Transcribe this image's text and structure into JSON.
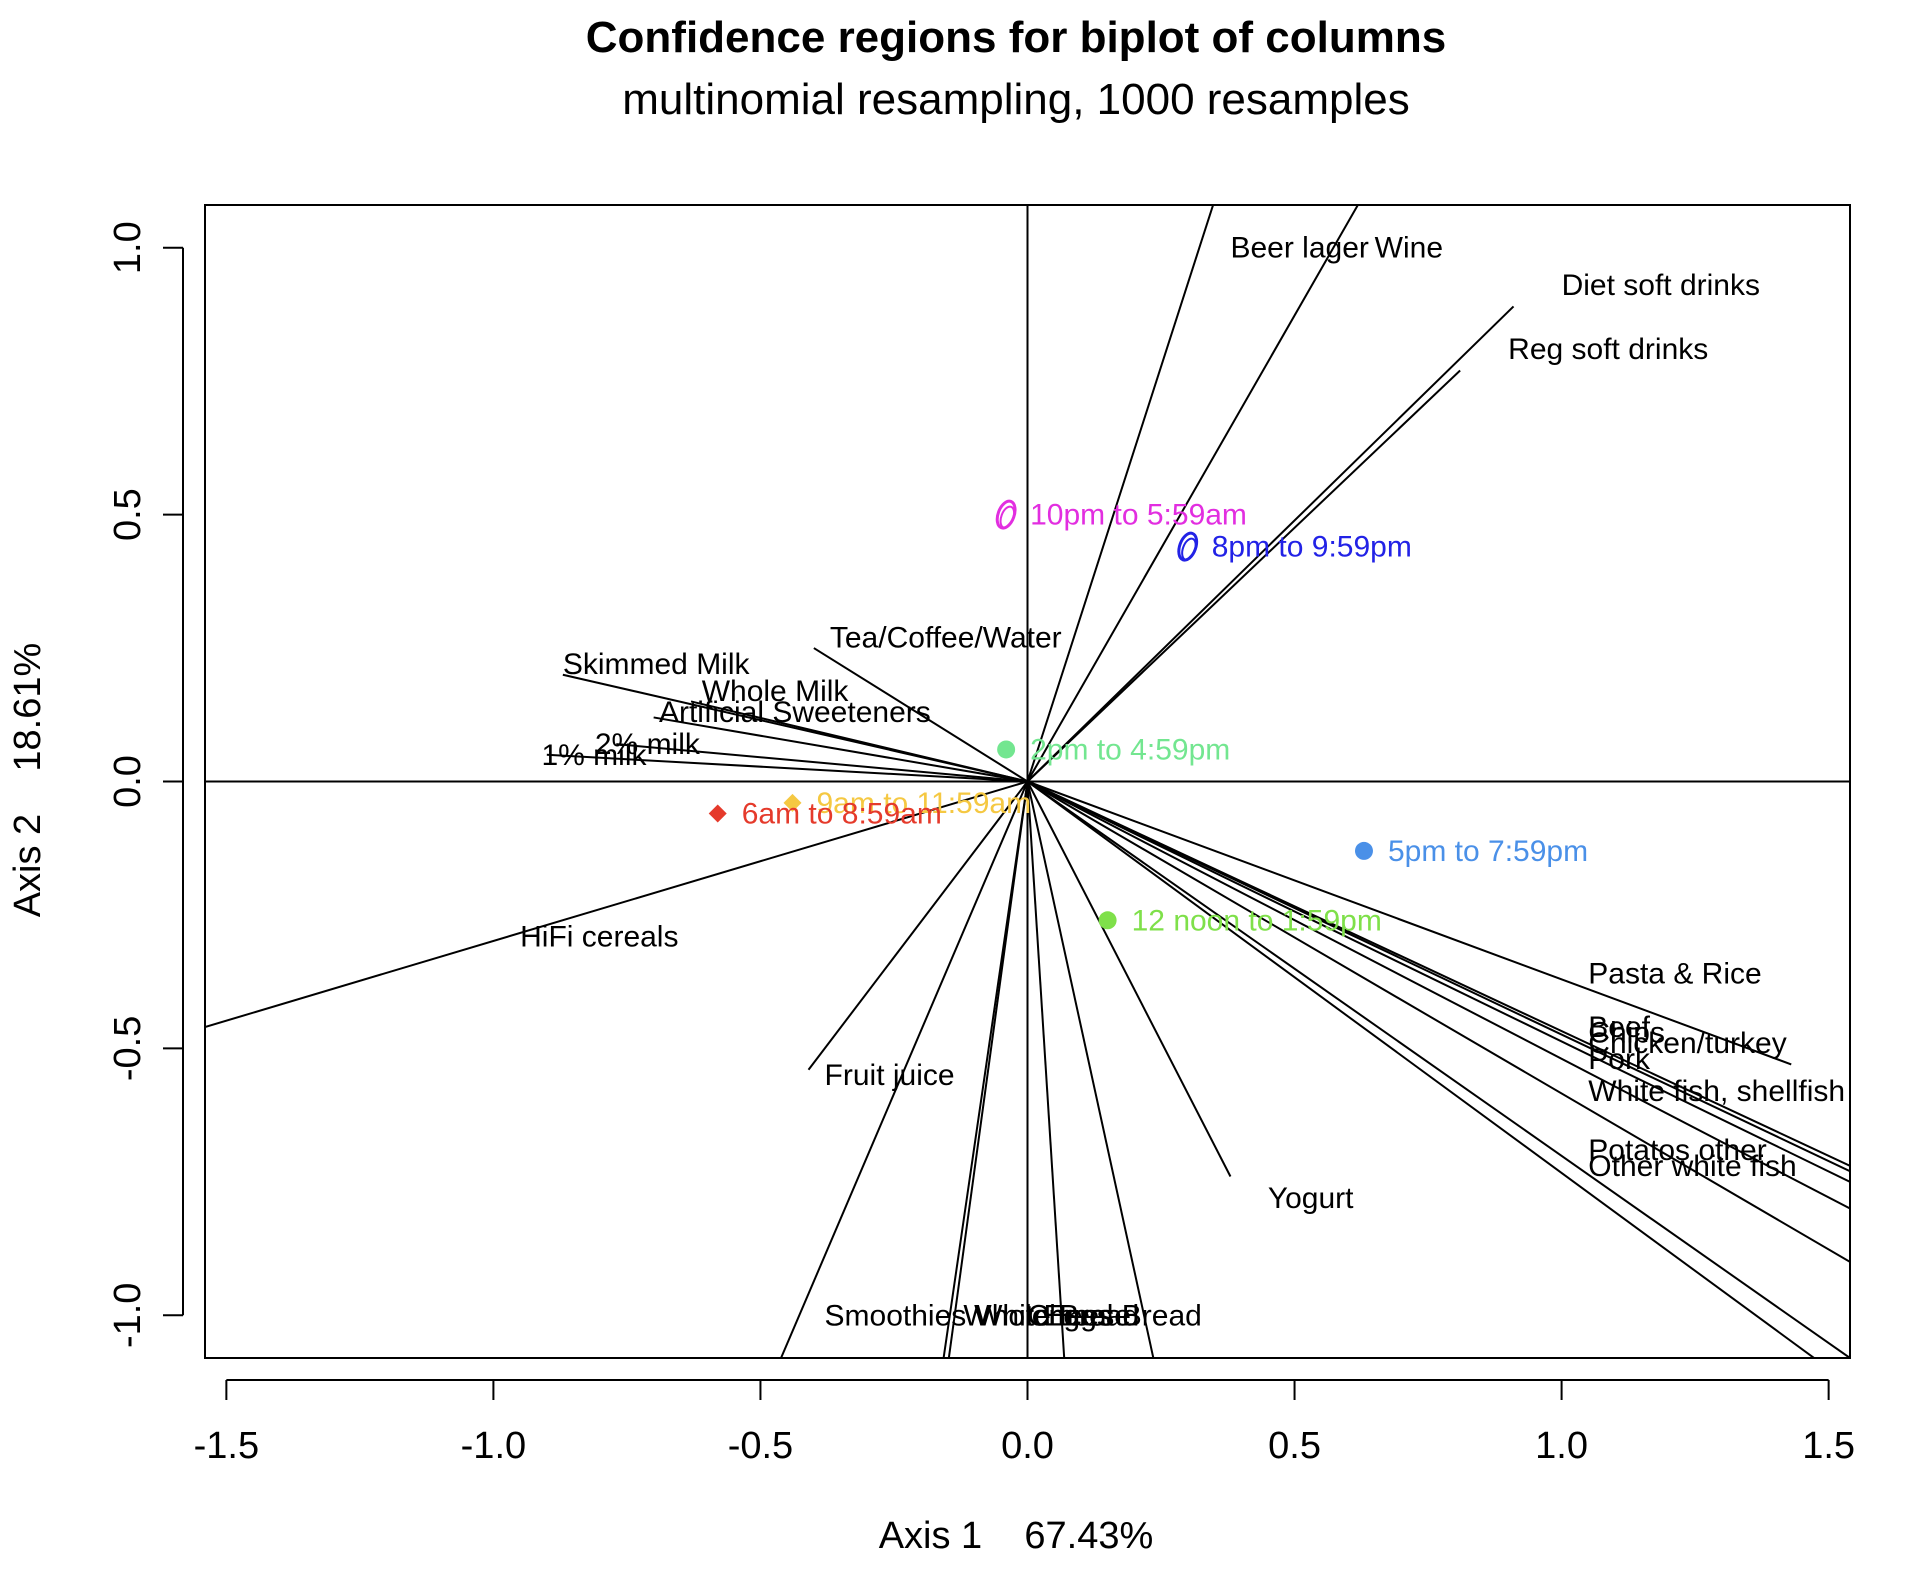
{
  "chart_data": {
    "type": "scatter",
    "title": "Confidence regions for biplot of columns",
    "subtitle": "multinomial resampling,  1000 resamples",
    "xlabel": "Axis 1    67.43%",
    "ylabel": "Axis 2    18.61%",
    "xlim": [
      -1.54,
      1.54
    ],
    "ylim": [
      -1.08,
      1.08
    ],
    "x_ticks": [
      {
        "v": -1.5,
        "label": "-1.5"
      },
      {
        "v": -1.0,
        "label": "-1.0"
      },
      {
        "v": -0.5,
        "label": "-0.5"
      },
      {
        "v": 0.0,
        "label": "0.0"
      },
      {
        "v": 0.5,
        "label": "0.5"
      },
      {
        "v": 1.0,
        "label": "1.0"
      },
      {
        "v": 1.5,
        "label": "1.5"
      }
    ],
    "y_ticks": [
      {
        "v": -1.0,
        "label": "-1.0"
      },
      {
        "v": -0.5,
        "label": "-0.5"
      },
      {
        "v": 0.0,
        "label": "0.0"
      },
      {
        "v": 0.5,
        "label": "0.5"
      },
      {
        "v": 1.0,
        "label": "1.0"
      }
    ],
    "reference_lines": {
      "x": 0,
      "y": 0
    },
    "variables": [
      {
        "label": "Beer lager",
        "x": 0.37,
        "y": 1.15,
        "label_x": 0.38,
        "label_y": 1.0
      },
      {
        "label": "Wine",
        "x": 0.63,
        "y": 1.1,
        "label_x": 0.65,
        "label_y": 1.0
      },
      {
        "label": "Diet soft drinks",
        "x": 0.91,
        "y": 0.89,
        "label_x": 1.0,
        "label_y": 0.93
      },
      {
        "label": "Reg soft drinks",
        "x": 0.81,
        "y": 0.77,
        "label_x": 0.9,
        "label_y": 0.81
      },
      {
        "label": "Tea/Coffee/Water",
        "x": -0.4,
        "y": 0.25,
        "label_x": -0.37,
        "label_y": 0.27
      },
      {
        "label": "Skimmed Milk",
        "x": -0.87,
        "y": 0.2,
        "label_x": -0.87,
        "label_y": 0.22
      },
      {
        "label": "Whole Milk",
        "x": -0.63,
        "y": 0.15,
        "label_x": -0.61,
        "label_y": 0.17
      },
      {
        "label": "Artificial Sweeteners",
        "x": -0.7,
        "y": 0.12,
        "label_x": -0.69,
        "label_y": 0.13
      },
      {
        "label": "2% milk",
        "x": -0.77,
        "y": 0.07,
        "label_x": -0.81,
        "label_y": 0.07
      },
      {
        "label": "1% milk",
        "x": -0.9,
        "y": 0.05,
        "label_x": -0.91,
        "label_y": 0.05
      },
      {
        "label": "HiFi cereals",
        "x": -1.54,
        "y": -0.46,
        "label_x": -0.95,
        "label_y": -0.29
      },
      {
        "label": "Fruit juice",
        "x": -0.41,
        "y": -0.54,
        "label_x": -0.38,
        "label_y": -0.55
      },
      {
        "label": "Yogurt",
        "x": 0.38,
        "y": -0.74,
        "label_x": 0.45,
        "label_y": -0.78
      },
      {
        "label": "Smoothies",
        "x": -0.47,
        "y": -1.1,
        "label_x": -0.38,
        "label_y": -1.0
      },
      {
        "label": "Wholemeal Bread",
        "x": -0.16,
        "y": -1.1,
        "label_x": -0.12,
        "label_y": -1.0
      },
      {
        "label": "White Bread",
        "x": -0.15,
        "y": -1.1,
        "label_x": -0.1,
        "label_y": -1.0
      },
      {
        "label": "Cheese",
        "x": 0.07,
        "y": -1.1,
        "label_x": 0.0,
        "label_y": -1.0
      },
      {
        "label": "Eggs",
        "x": 0.24,
        "y": -1.1,
        "label_x": 0.03,
        "label_y": -1.0
      },
      {
        "label": "Pasta & Rice",
        "x": 1.43,
        "y": -0.53,
        "label_x": 1.05,
        "label_y": -0.36
      },
      {
        "label": "Beef",
        "x": 1.54,
        "y": -0.72,
        "label_x": 1.05,
        "label_y": -0.46
      },
      {
        "label": "Chips",
        "x": 1.54,
        "y": -0.73,
        "label_x": 1.05,
        "label_y": -0.47
      },
      {
        "label": "Chicken/turkey",
        "x": 1.54,
        "y": -0.75,
        "label_x": 1.05,
        "label_y": -0.49
      },
      {
        "label": "Pork",
        "x": 1.54,
        "y": -0.8,
        "label_x": 1.05,
        "label_y": -0.52
      },
      {
        "label": "White fish, shellfish",
        "x": 1.54,
        "y": -0.9,
        "label_x": 1.05,
        "label_y": -0.58
      },
      {
        "label": "Potatos other",
        "x": 1.5,
        "y": -1.1,
        "label_x": 1.05,
        "label_y": -0.69
      },
      {
        "label": "Other white fish",
        "x": 1.54,
        "y": -1.08,
        "label_x": 1.05,
        "label_y": -0.72
      }
    ],
    "points": [
      {
        "label": "10pm to 5:59am",
        "x": -0.04,
        "y": 0.5,
        "color": "#e22ee0",
        "marker": "ellipse"
      },
      {
        "label": "8pm to 9:59pm",
        "x": 0.3,
        "y": 0.44,
        "color": "#2222e6",
        "marker": "ellipse"
      },
      {
        "label": "2pm to 4:59pm",
        "x": -0.04,
        "y": 0.06,
        "color": "#73e690",
        "marker": "dot"
      },
      {
        "label": "9am to 11:59am",
        "x": -0.44,
        "y": -0.04,
        "color": "#f5c842",
        "marker": "diamond"
      },
      {
        "label": "6am to 8:59am",
        "x": -0.58,
        "y": -0.06,
        "color": "#e53a2b",
        "marker": "diamond"
      },
      {
        "label": "5pm to 7:59pm",
        "x": 0.63,
        "y": -0.13,
        "color": "#4a90e8",
        "marker": "dot"
      },
      {
        "label": "12 noon to 1:59pm",
        "x": 0.15,
        "y": -0.26,
        "color": "#7fe04a",
        "marker": "dot"
      }
    ]
  }
}
